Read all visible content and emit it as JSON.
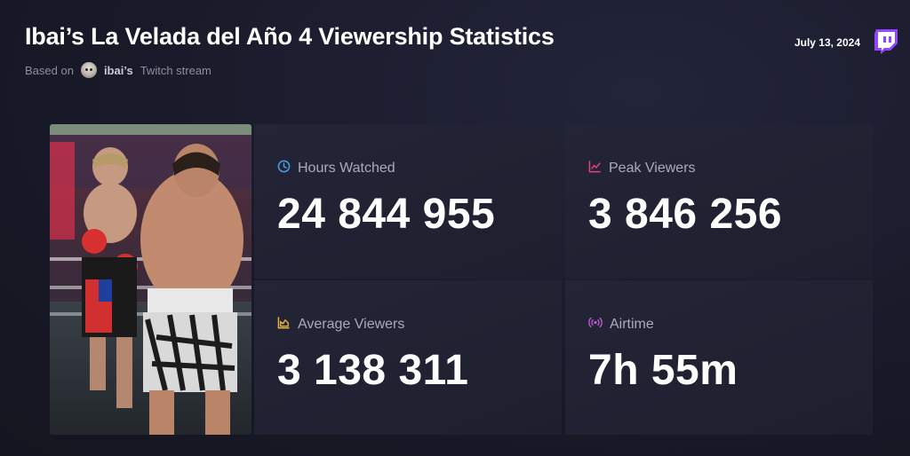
{
  "header": {
    "title": "Ibai’s La Velada del Año 4 Viewership Statistics",
    "based_on": "Based on",
    "channel": "ibai’s",
    "source": "Twitch stream",
    "date": "July 13, 2024"
  },
  "icons": {
    "brand": "twitch-logo-icon",
    "hours_watched": "clock-icon",
    "peak_viewers": "chart-line-icon",
    "average_viewers": "chart-area-icon",
    "airtime": "broadcast-icon"
  },
  "colors": {
    "twitch": "#9146ff",
    "hours_watched_icon": "#4aa3df",
    "peak_viewers_icon": "#e0457b",
    "average_viewers_icon": "#e8b33c",
    "airtime_icon": "#c45bd6"
  },
  "stats": {
    "hours_watched": {
      "label": "Hours Watched",
      "value": "24 844 955"
    },
    "peak_viewers": {
      "label": "Peak Viewers",
      "value": "3 846 256"
    },
    "average_viewers": {
      "label": "Average Viewers",
      "value": "3 138 311"
    },
    "airtime": {
      "label": "Airtime",
      "value": "7h 55m"
    }
  }
}
